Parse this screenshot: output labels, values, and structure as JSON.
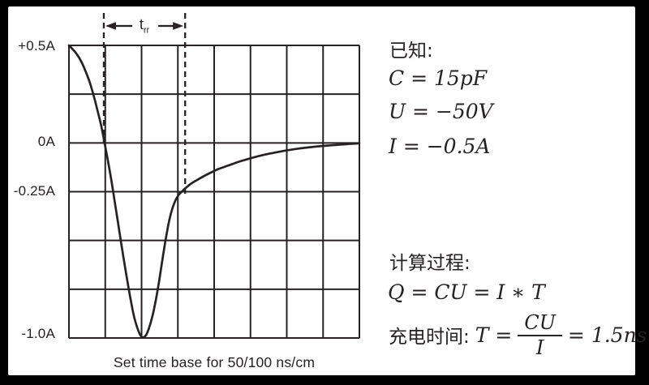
{
  "colors": {
    "frame": "#000000",
    "panel": "#ffffff",
    "ink": "#262223"
  },
  "chart_data": {
    "type": "line",
    "title": "",
    "caption": "Set time base for 50/100 ns/cm",
    "x_axis": {
      "unit": "time",
      "divisions": 8,
      "time_base": "50/100 ns/cm"
    },
    "y_axis": {
      "unit": "A",
      "min": -1.0,
      "max": 0.5,
      "amps_per_division": 0.25,
      "ticks": [
        {
          "label": "+0.5A",
          "value": 0.5
        },
        {
          "label": "0A",
          "value": 0
        },
        {
          "label": "-0.25A",
          "value": -0.25
        },
        {
          "label": "-1.0A",
          "value": -1.0
        }
      ]
    },
    "grid": {
      "on": true,
      "rows": 6,
      "cols": 8
    },
    "annotation": {
      "text": "t",
      "subscript": "rr",
      "from_div": 0.96,
      "to_div": 3.2
    },
    "markers": [
      {
        "x_div": 0.96,
        "to_amps": 0.0
      },
      {
        "x_div": 3.2,
        "to_amps": -0.268
      }
    ],
    "series": [
      {
        "name": "diode-reverse-recovery-current",
        "points": [
          [
            0.0,
            0.5
          ],
          [
            0.11,
            0.479
          ],
          [
            0.22,
            0.454
          ],
          [
            0.34,
            0.417
          ],
          [
            0.45,
            0.371
          ],
          [
            0.56,
            0.317
          ],
          [
            0.67,
            0.25
          ],
          [
            0.78,
            0.171
          ],
          [
            0.89,
            0.088
          ],
          [
            0.98,
            0.0
          ],
          [
            1.07,
            -0.088
          ],
          [
            1.16,
            -0.183
          ],
          [
            1.25,
            -0.288
          ],
          [
            1.34,
            -0.396
          ],
          [
            1.43,
            -0.504
          ],
          [
            1.52,
            -0.608
          ],
          [
            1.61,
            -0.708
          ],
          [
            1.7,
            -0.804
          ],
          [
            1.79,
            -0.888
          ],
          [
            1.88,
            -0.946
          ],
          [
            1.96,
            -0.983
          ],
          [
            2.04,
            -0.997
          ],
          [
            2.13,
            -0.983
          ],
          [
            2.21,
            -0.946
          ],
          [
            2.3,
            -0.888
          ],
          [
            2.39,
            -0.808
          ],
          [
            2.48,
            -0.713
          ],
          [
            2.57,
            -0.604
          ],
          [
            2.66,
            -0.5
          ],
          [
            2.75,
            -0.408
          ],
          [
            2.84,
            -0.342
          ],
          [
            2.93,
            -0.296
          ],
          [
            3.02,
            -0.267
          ],
          [
            3.13,
            -0.246
          ],
          [
            3.24,
            -0.227
          ],
          [
            3.37,
            -0.208
          ],
          [
            3.53,
            -0.19
          ],
          [
            3.71,
            -0.171
          ],
          [
            3.91,
            -0.152
          ],
          [
            4.13,
            -0.133
          ],
          [
            4.4,
            -0.115
          ],
          [
            4.69,
            -0.096
          ],
          [
            5.03,
            -0.077
          ],
          [
            5.39,
            -0.06
          ],
          [
            5.77,
            -0.046
          ],
          [
            6.17,
            -0.033
          ],
          [
            6.59,
            -0.023
          ],
          [
            7.04,
            -0.015
          ],
          [
            7.51,
            -0.008
          ],
          [
            8.0,
            -0.002
          ]
        ]
      }
    ]
  },
  "notes": {
    "known_heading": "已知:",
    "known_lines": [
      "C = 15pF",
      "U = −50V",
      "I = −0.5A"
    ],
    "calc_heading": "计算过程:",
    "calc_line": "Q = CU = I ∗ T",
    "time_prefix": "充电时间:",
    "time_lhs": "T =",
    "frac_num": "CU",
    "frac_den": "I",
    "time_rhs": "= 1.5ns"
  }
}
